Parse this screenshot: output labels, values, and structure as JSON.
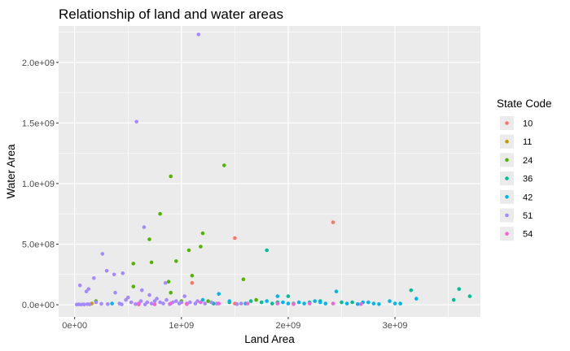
{
  "chart_data": {
    "type": "scatter",
    "title": "Relationship of land and water areas",
    "xlabel": "Land Area",
    "ylabel": "Water Area",
    "xlim": [
      -150000000.0,
      3800000000.0
    ],
    "ylim": [
      -100000000.0,
      2300000000.0
    ],
    "x_ticks": [
      0,
      1000000000.0,
      2000000000.0,
      3000000000.0
    ],
    "x_tick_labels": [
      "0e+00",
      "1e+09",
      "2e+09",
      "3e+09"
    ],
    "y_ticks": [
      0,
      500000000.0,
      1000000000.0,
      1500000000.0,
      2000000000.0
    ],
    "y_tick_labels": [
      "0.0e+00",
      "5.0e+08",
      "1.0e+09",
      "1.5e+09",
      "2.0e+09"
    ],
    "grid": true,
    "panel_background": "#ebebeb",
    "legend": {
      "title": "State Code",
      "placement": "right",
      "entries": [
        {
          "label": "10",
          "color": "#F8766D"
        },
        {
          "label": "11",
          "color": "#C49A00"
        },
        {
          "label": "24",
          "color": "#53B400"
        },
        {
          "label": "36",
          "color": "#00C094"
        },
        {
          "label": "42",
          "color": "#00B6EB"
        },
        {
          "label": "51",
          "color": "#A58AFF"
        },
        {
          "label": "54",
          "color": "#FB61D7"
        }
      ]
    },
    "series": [
      {
        "name": "10",
        "color": "#F8766D",
        "points": [
          [
            1500000000.0,
            550000000.0
          ],
          [
            2420000000.0,
            680000000.0
          ],
          [
            1100000000.0,
            180000000.0
          ],
          [
            600000000.0,
            2000000.0
          ],
          [
            1500000000.0,
            10000000.0
          ]
        ]
      },
      {
        "name": "11",
        "color": "#C49A00",
        "points": [
          [
            160000000.0,
            10000000.0
          ]
        ]
      },
      {
        "name": "24",
        "color": "#53B400",
        "points": [
          [
            900000000.0,
            1060000000.0
          ],
          [
            1400000000.0,
            1150000000.0
          ],
          [
            800000000.0,
            750000000.0
          ],
          [
            1200000000.0,
            590000000.0
          ],
          [
            700000000.0,
            540000000.0
          ],
          [
            1180000000.0,
            480000000.0
          ],
          [
            1070000000.0,
            450000000.0
          ],
          [
            720000000.0,
            350000000.0
          ],
          [
            550000000.0,
            340000000.0
          ],
          [
            950000000.0,
            360000000.0
          ],
          [
            1100000000.0,
            240000000.0
          ],
          [
            1580000000.0,
            210000000.0
          ],
          [
            880000000.0,
            190000000.0
          ],
          [
            550000000.0,
            150000000.0
          ],
          [
            1000000000.0,
            30000000.0
          ],
          [
            1250000000.0,
            30000000.0
          ],
          [
            1700000000.0,
            40000000.0
          ],
          [
            200000000.0,
            30000000.0
          ],
          [
            900000000.0,
            100000000.0
          ]
        ]
      },
      {
        "name": "36",
        "color": "#00C094",
        "points": [
          [
            1800000000.0,
            450000000.0
          ],
          [
            3150000000.0,
            120000000.0
          ],
          [
            3600000000.0,
            130000000.0
          ],
          [
            3700000000.0,
            70000000.0
          ],
          [
            3550000000.0,
            40000000.0
          ],
          [
            2000000000.0,
            70000000.0
          ],
          [
            1650000000.0,
            30000000.0
          ],
          [
            1900000000.0,
            20000000.0
          ],
          [
            2500000000.0,
            20000000.0
          ],
          [
            2300000000.0,
            30000000.0
          ],
          [
            2200000000.0,
            20000000.0
          ],
          [
            2600000000.0,
            20000000.0
          ],
          [
            1450000000.0,
            20000000.0
          ],
          [
            1850000000.0,
            10000000.0
          ],
          [
            2050000000.0,
            10000000.0
          ],
          [
            1750000000.0,
            20000000.0
          ],
          [
            1300000000.0,
            10000000.0
          ]
        ]
      },
      {
        "name": "42",
        "color": "#00B6EB",
        "points": [
          [
            1350000000.0,
            90000000.0
          ],
          [
            2450000000.0,
            110000000.0
          ],
          [
            1900000000.0,
            70000000.0
          ],
          [
            3200000000.0,
            50000000.0
          ],
          [
            2950000000.0,
            30000000.0
          ],
          [
            2800000000.0,
            10000000.0
          ],
          [
            2700000000.0,
            20000000.0
          ],
          [
            2350000000.0,
            10000000.0
          ],
          [
            2100000000.0,
            20000000.0
          ],
          [
            2250000000.0,
            30000000.0
          ],
          [
            2550000000.0,
            10000000.0
          ],
          [
            1600000000.0,
            10000000.0
          ],
          [
            1450000000.0,
            30000000.0
          ],
          [
            1200000000.0,
            40000000.0
          ],
          [
            2000000000.0,
            10000000.0
          ],
          [
            2300000000.0,
            20000000.0
          ],
          [
            2850000000.0,
            5000000.0
          ],
          [
            3000000000.0,
            10000000.0
          ],
          [
            350000000.0,
            10000000.0
          ],
          [
            2650000000.0,
            5000000.0
          ],
          [
            1950000000.0,
            20000000.0
          ],
          [
            2150000000.0,
            10000000.0
          ],
          [
            3050000000.0,
            10000000.0
          ],
          [
            2750000000.0,
            20000000.0
          ],
          [
            1800000000.0,
            30000000.0
          ]
        ]
      },
      {
        "name": "51",
        "color": "#A58AFF",
        "points": [
          [
            1160000000.0,
            2230000000.0
          ],
          [
            580000000.0,
            1510000000.0
          ],
          [
            650000000.0,
            640000000.0
          ],
          [
            260000000.0,
            420000000.0
          ],
          [
            300000000.0,
            280000000.0
          ],
          [
            370000000.0,
            250000000.0
          ],
          [
            450000000.0,
            260000000.0
          ],
          [
            180000000.0,
            220000000.0
          ],
          [
            50000000.0,
            160000000.0
          ],
          [
            130000000.0,
            130000000.0
          ],
          [
            110000000.0,
            110000000.0
          ],
          [
            380000000.0,
            100000000.0
          ],
          [
            200000000.0,
            20000000.0
          ],
          [
            500000000.0,
            60000000.0
          ],
          [
            700000000.0,
            80000000.0
          ],
          [
            850000000.0,
            180000000.0
          ],
          [
            630000000.0,
            120000000.0
          ],
          [
            770000000.0,
            50000000.0
          ],
          [
            1030000000.0,
            70000000.0
          ],
          [
            20000000.0,
            2000000.0
          ],
          [
            40000000.0,
            3000000.0
          ],
          [
            60000000.0,
            1000000.0
          ],
          [
            80000000.0,
            4000000.0
          ],
          [
            90000000.0,
            2000000.0
          ],
          [
            120000000.0,
            5000000.0
          ],
          [
            140000000.0,
            3000000.0
          ],
          [
            250000000.0,
            8000000.0
          ],
          [
            310000000.0,
            5000000.0
          ],
          [
            420000000.0,
            10000000.0
          ],
          [
            480000000.0,
            40000000.0
          ],
          [
            530000000.0,
            20000000.0
          ],
          [
            600000000.0,
            10000000.0
          ],
          [
            620000000.0,
            30000000.0
          ],
          [
            680000000.0,
            20000000.0
          ],
          [
            720000000.0,
            10000000.0
          ],
          [
            750000000.0,
            30000000.0
          ],
          [
            800000000.0,
            20000000.0
          ],
          [
            830000000.0,
            10000000.0
          ],
          [
            860000000.0,
            40000000.0
          ],
          [
            920000000.0,
            20000000.0
          ],
          [
            950000000.0,
            30000000.0
          ],
          [
            980000000.0,
            10000000.0
          ],
          [
            1000000000.0,
            20000000.0
          ],
          [
            1050000000.0,
            10000000.0
          ],
          [
            1080000000.0,
            20000000.0
          ],
          [
            1130000000.0,
            10000000.0
          ],
          [
            1150000000.0,
            30000000.0
          ],
          [
            1220000000.0,
            10000000.0
          ],
          [
            1280000000.0,
            20000000.0
          ],
          [
            1330000000.0,
            10000000.0
          ],
          [
            1520000000.0,
            5000000.0
          ],
          [
            1560000000.0,
            10000000.0
          ],
          [
            440000000.0,
            3000000.0
          ],
          [
            570000000.0,
            5000000.0
          ],
          [
            660000000.0,
            2000000.0
          ],
          [
            890000000.0,
            5000000.0
          ]
        ]
      },
      {
        "name": "54",
        "color": "#FB61D7",
        "points": [
          [
            600000000.0,
            10000000.0
          ],
          [
            900000000.0,
            10000000.0
          ],
          [
            1180000000.0,
            20000000.0
          ],
          [
            1350000000.0,
            10000000.0
          ],
          [
            2050000000.0,
            5000000.0
          ],
          [
            2420000000.0,
            10000000.0
          ],
          [
            2680000000.0,
            5000000.0
          ],
          [
            1620000000.0,
            10000000.0
          ],
          [
            1900000000.0,
            10000000.0
          ],
          [
            1050000000.0,
            5000000.0
          ],
          [
            750000000.0,
            3000000.0
          ],
          [
            2200000000.0,
            10000000.0
          ]
        ]
      }
    ]
  }
}
